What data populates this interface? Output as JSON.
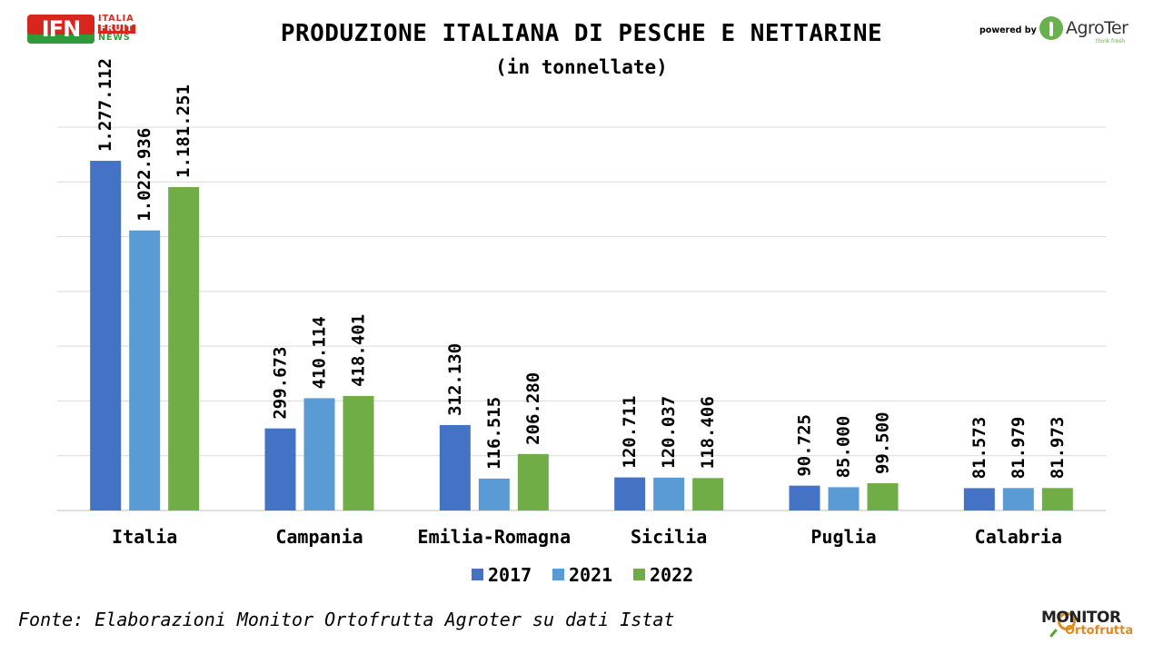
{
  "header": {
    "title": "PRODUZIONE ITALIANA DI PESCHE E NETTARINE",
    "subtitle": "(in tonnellate)"
  },
  "logos": {
    "ifn": {
      "abbr": "IFN",
      "line1": "ITALIA",
      "line2": "FRUIT",
      "line3": "NEWS"
    },
    "powered_by": "powered by",
    "agroter": {
      "name": "AgroTer",
      "tagline": "think fresh"
    },
    "monitor": {
      "line1": "MONITOR",
      "line2": "Ortofrutta"
    }
  },
  "footer": {
    "source": "Fonte: Elaborazioni Monitor Ortofrutta Agroter su dati Istat"
  },
  "colors": {
    "2017": "#4472c4",
    "2021": "#5b9bd5",
    "2022": "#70ad47",
    "grid": "#d9d9d9",
    "axis": "#bfbfbf"
  },
  "chart_data": {
    "type": "bar",
    "title": "PRODUZIONE ITALIANA DI PESCHE E NETTARINE",
    "subtitle": "(in tonnellate)",
    "categories": [
      "Italia",
      "Campania",
      "Emilia-Romagna",
      "Sicilia",
      "Puglia",
      "Calabria"
    ],
    "series": [
      {
        "name": "2017",
        "values": [
          1277112,
          299673,
          312130,
          120711,
          90725,
          81573
        ],
        "labels": [
          "1.277.112",
          "299.673",
          "312.130",
          "120.711",
          "90.725",
          "81.573"
        ]
      },
      {
        "name": "2021",
        "values": [
          1022936,
          410114,
          116515,
          120037,
          85000,
          81979
        ],
        "labels": [
          "1.022.936",
          "410.114",
          "116.515",
          "120.037",
          "85.000",
          "81.979"
        ]
      },
      {
        "name": "2022",
        "values": [
          1181251,
          418401,
          206280,
          118406,
          99500,
          81973
        ],
        "labels": [
          "1.181.251",
          "418.401",
          "206.280",
          "118.406",
          "99.500",
          "81.973"
        ]
      }
    ],
    "ylim": [
      0,
      1400000
    ],
    "grid": true,
    "legend": "bottom",
    "data_labels": "rotated-vertical"
  }
}
